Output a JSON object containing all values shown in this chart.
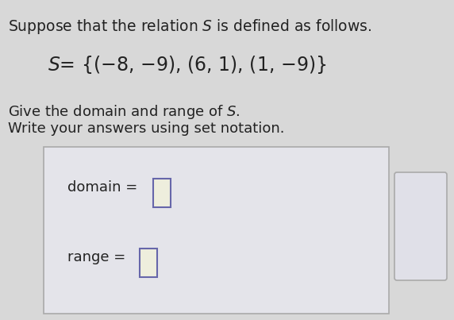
{
  "bg_color": "#d8d8d8",
  "box_bg": "#e8e8ec",
  "box_border": "#aaaaaa",
  "input_fill": "#eeeedd",
  "input_border": "#6666aa",
  "text_color": "#222222",
  "font_size_title": 13.5,
  "font_size_eq": 17,
  "font_size_body": 13,
  "font_size_box": 13,
  "line1": "Suppose that the relation $S$ is defined as follows.",
  "line2": "$S$= {($-$8, $-$9), (6, 1), (1, $-$9)}",
  "line3": "Give the domain and range of $S$.",
  "line4": "Write your answers using set notation.",
  "label_domain": "domain = ",
  "label_range": "range = "
}
